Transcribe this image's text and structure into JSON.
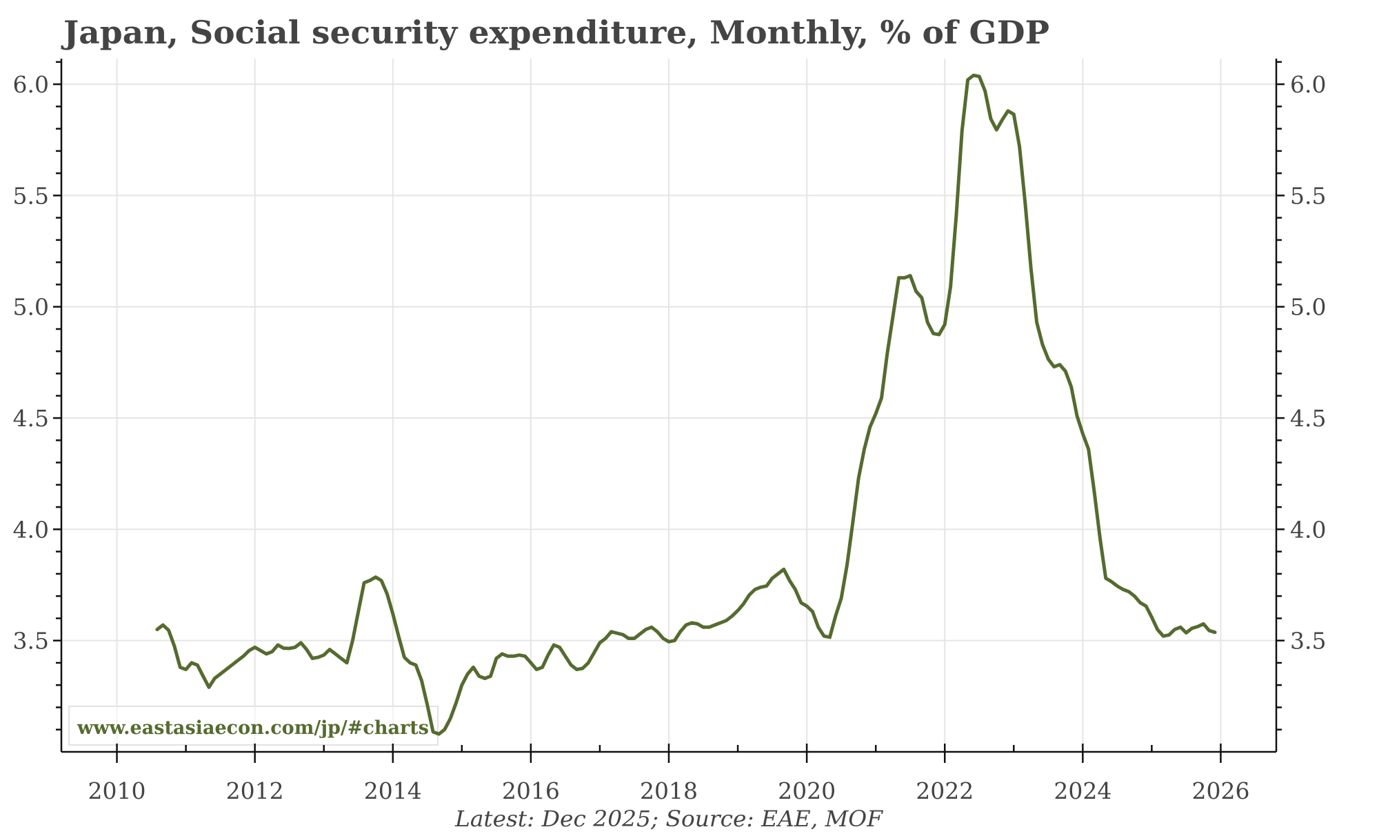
{
  "chart_data": {
    "type": "line",
    "title": "Japan, Social security expenditure, Monthly, % of GDP",
    "footer": "Latest: Dec 2025; Source: EAE, MOF",
    "watermark": "www.eastasiaecon.com/jp/#charts",
    "xlabel": "",
    "ylabel": "",
    "xlim": [
      2009.195,
      2026.805
    ],
    "ylim": [
      3.0,
      6.115
    ],
    "x_ticks": [
      2010,
      2012,
      2014,
      2016,
      2018,
      2020,
      2022,
      2024,
      2026
    ],
    "x_tick_labels": [
      "2010",
      "2012",
      "2014",
      "2016",
      "2018",
      "2020",
      "2022",
      "2024",
      "2026"
    ],
    "x_minor_ticks": [
      2011,
      2013,
      2015,
      2017,
      2019,
      2021,
      2023,
      2025
    ],
    "y_ticks": [
      3.5,
      4.0,
      4.5,
      5.0,
      5.5,
      6.0
    ],
    "y_tick_labels": [
      "3.5",
      "4.0",
      "4.5",
      "5.0",
      "5.5",
      "6.0"
    ],
    "y_minor_step": 0.1,
    "grid": true,
    "y_axis_sides": [
      "left",
      "right"
    ],
    "legend": "none",
    "series": [
      {
        "name": "Social security expenditure, % of GDP",
        "color": "#556b2f",
        "start": "2010-08",
        "end": "2025-12",
        "frequency": "monthly",
        "values": [
          3.55,
          3.57,
          3.546,
          3.475,
          3.38,
          3.37,
          3.4,
          3.39,
          3.34,
          3.29,
          3.33,
          3.35,
          3.37,
          3.39,
          3.41,
          3.43,
          3.455,
          3.47,
          3.455,
          3.44,
          3.45,
          3.48,
          3.466,
          3.465,
          3.47,
          3.49,
          3.46,
          3.42,
          3.425,
          3.435,
          3.46,
          3.44,
          3.42,
          3.4,
          3.5,
          3.63,
          3.76,
          3.77,
          3.785,
          3.77,
          3.71,
          3.62,
          3.52,
          3.425,
          3.4,
          3.39,
          3.32,
          3.21,
          3.09,
          3.08,
          3.1,
          3.15,
          3.22,
          3.3,
          3.35,
          3.38,
          3.34,
          3.33,
          3.34,
          3.42,
          3.44,
          3.43,
          3.43,
          3.435,
          3.43,
          3.4,
          3.37,
          3.38,
          3.435,
          3.48,
          3.47,
          3.43,
          3.39,
          3.37,
          3.375,
          3.4,
          3.445,
          3.49,
          3.51,
          3.54,
          3.533,
          3.527,
          3.51,
          3.51,
          3.53,
          3.55,
          3.56,
          3.54,
          3.51,
          3.495,
          3.5,
          3.54,
          3.57,
          3.58,
          3.575,
          3.56,
          3.56,
          3.57,
          3.58,
          3.59,
          3.61,
          3.635,
          3.665,
          3.705,
          3.73,
          3.74,
          3.745,
          3.78,
          3.8,
          3.82,
          3.77,
          3.73,
          3.67,
          3.655,
          3.63,
          3.56,
          3.52,
          3.515,
          3.61,
          3.69,
          3.84,
          4.03,
          4.23,
          4.36,
          4.46,
          4.52,
          4.59,
          4.79,
          4.96,
          5.13,
          5.13,
          5.14,
          5.07,
          5.04,
          4.93,
          4.88,
          4.875,
          4.92,
          5.09,
          5.41,
          5.79,
          6.02,
          6.04,
          6.035,
          5.97,
          5.845,
          5.795,
          5.84,
          5.88,
          5.865,
          5.72,
          5.46,
          5.17,
          4.93,
          4.83,
          4.765,
          4.73,
          4.74,
          4.71,
          4.64,
          4.51,
          4.43,
          4.36,
          4.17,
          3.96,
          3.78,
          3.765,
          3.745,
          3.73,
          3.72,
          3.7,
          3.67,
          3.655,
          3.605,
          3.55,
          3.52,
          3.525,
          3.55,
          3.56,
          3.535,
          3.555,
          3.563,
          3.575,
          3.545,
          3.537
        ]
      }
    ]
  }
}
